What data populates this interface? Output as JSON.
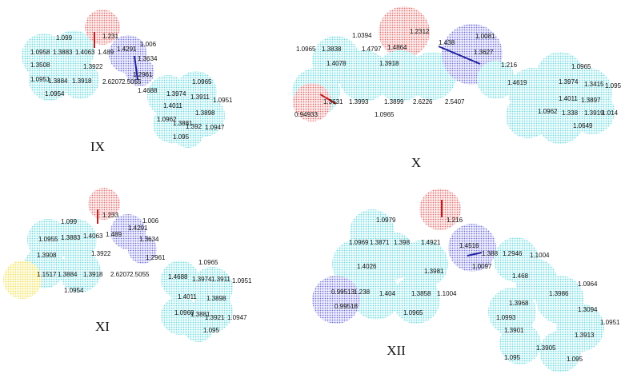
{
  "panels": [
    {
      "label": "IX",
      "bonds": [
        "1.099",
        "1.231",
        "1.006",
        "1.0958",
        "1.3883",
        "1.4063",
        "1.489",
        "1.4291",
        "1.3634",
        "1.3508",
        "1.3922",
        "1.2961",
        "1.0951",
        "1.3884",
        "1.3918",
        "2.6207",
        "2.5055",
        "1.0954",
        "1.4688",
        "1.0965",
        "1.3974",
        "1.3911",
        "1.0951",
        "1.4011",
        "1.3898",
        "1.0962",
        "1.3881",
        "1.392",
        "1.0947",
        "1.095"
      ]
    },
    {
      "label": "X",
      "bonds": [
        "1.0394",
        "1.2312",
        "1.0081",
        "1.0965",
        "1.3838",
        "1.4797",
        "1.4864",
        "1.438",
        "1.3627",
        "1.4078",
        "1.3918",
        "1.216",
        "1.0965",
        "1.3974",
        "1.3415",
        "1.095",
        "1.3631",
        "1.3993",
        "1.3899",
        "2.6226",
        "2.5407",
        "1.4619",
        "0.94933",
        "1.0965",
        "1.4011",
        "1.3897",
        "1.0962",
        "1.338",
        "1.3919",
        "1.014",
        "1.0649"
      ]
    },
    {
      "label": "XI",
      "bonds": [
        "1.233",
        "1.006",
        "1.099",
        "1.4291",
        "1.0955",
        "1.3883",
        "1.4063",
        "1.489",
        "1.3634",
        "1.3908",
        "1.3922",
        "1.2961",
        "1.0965",
        "1.1517",
        "1.3884",
        "1.3918",
        "2.6207",
        "2.5055",
        "1.4688",
        "1.3974",
        "1.3911",
        "1.0951",
        "1.0954",
        "1.4011",
        "1.3898",
        "1.0960",
        "1.3881",
        "1.3921",
        "1.0947",
        "1.095"
      ]
    },
    {
      "label": "XII",
      "bonds": [
        "1.0979",
        "1.216",
        "1.0969",
        "1.3871",
        "1.398",
        "1.4921",
        "1.4516",
        "1.388",
        "1.2946",
        "1.1004",
        "1.0097",
        "1.4026",
        "1.3981",
        "1.468",
        "1.0964",
        "1.3986",
        "0.99513",
        "1.238",
        "1.404",
        "1.3858",
        "1.1004",
        "1.3968",
        "1.3094",
        "0.99518",
        "1.0965",
        "1.0993",
        "1.0951",
        "1.3901",
        "1.3913",
        "1.3905",
        "1.095",
        "1.095"
      ]
    }
  ]
}
